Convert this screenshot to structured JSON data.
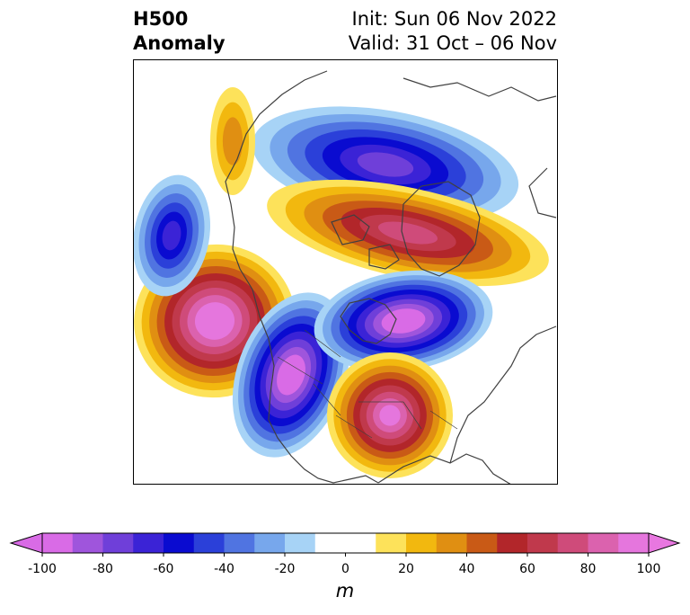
{
  "title": {
    "left_line1": "H500",
    "left_line2": "Anomaly",
    "right_line1": "Init: Sun 06 Nov 2022",
    "right_line2": "Valid: 31 Oct – 06 Nov"
  },
  "colorbar": {
    "unit": "m",
    "ticks": [
      "-100",
      "-80",
      "-60",
      "-40",
      "-20",
      "0",
      "20",
      "40",
      "60",
      "80",
      "100"
    ],
    "levels": [
      -100,
      -90,
      -80,
      -70,
      -60,
      -50,
      -40,
      -30,
      -20,
      -10,
      10,
      20,
      30,
      40,
      50,
      60,
      70,
      80,
      90,
      100
    ],
    "colors": [
      "#d96be6",
      "#9f55dc",
      "#6f3fd9",
      "#3b23d6",
      "#0a0bd0",
      "#2b40d9",
      "#5074e1",
      "#77a7ec",
      "#a7d3f6",
      "#ffffff",
      "#fde25a",
      "#f2b80f",
      "#e08f12",
      "#c95a16",
      "#b2262a",
      "#c0394c",
      "#cf4b7a",
      "#db62ae",
      "#e576dd"
    ],
    "under_color": "#d96be6",
    "over_color": "#e877e0"
  },
  "anomalies": [
    {
      "name": "negative-center-canada",
      "value": -70
    },
    {
      "name": "positive-ridge-arctic",
      "value": 70
    },
    {
      "name": "positive-center-alaska-pacific",
      "value": 100
    },
    {
      "name": "negative-trough-western-us",
      "value": -100
    },
    {
      "name": "negative-center-hudson-bay",
      "value": -100
    },
    {
      "name": "positive-center-eastern-us",
      "value": 90
    },
    {
      "name": "negative-center-siberia",
      "value": -60
    },
    {
      "name": "positive-center-far-east",
      "value": 30
    }
  ]
}
